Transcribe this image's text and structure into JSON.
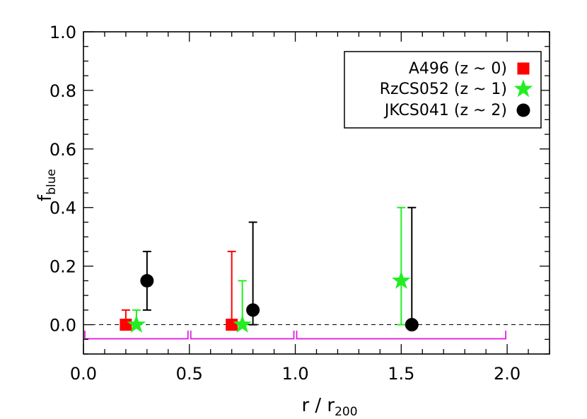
{
  "chart_data": {
    "type": "scatter",
    "title": "",
    "xlabel": "r / r",
    "xlabel_sub": "200",
    "ylabel": "f",
    "ylabel_sub": "blue",
    "xlim": [
      0.0,
      2.2
    ],
    "ylim": [
      -0.1,
      1.0
    ],
    "x_ticks": [
      0.0,
      0.5,
      1.0,
      1.5,
      2.0
    ],
    "x_tick_labels": [
      "0.0",
      "0.5",
      "1.0",
      "1.5",
      "2.0"
    ],
    "y_ticks": [
      0.0,
      0.2,
      0.4,
      0.6,
      0.8,
      1.0
    ],
    "y_tick_labels": [
      "0.0",
      "0.2",
      "0.4",
      "0.6",
      "0.8",
      "1.0"
    ],
    "grid": false,
    "legend_position": "top-right",
    "reference_line_y": 0.0,
    "radial_bins": [
      [
        0.0,
        0.5
      ],
      [
        0.5,
        1.0
      ],
      [
        1.0,
        2.0
      ]
    ],
    "bin_color": "#e020e0",
    "series": [
      {
        "name": "A496 (z ~ 0)",
        "color": "#ff0000",
        "marker": "square",
        "points": [
          {
            "x": 0.2,
            "y": 0.0,
            "y_low": 0.0,
            "y_high": 0.05
          },
          {
            "x": 0.7,
            "y": 0.0,
            "y_low": 0.0,
            "y_high": 0.25
          }
        ]
      },
      {
        "name": "RzCS052 (z ~ 1)",
        "color": "#22ee22",
        "marker": "star",
        "points": [
          {
            "x": 0.25,
            "y": 0.0,
            "y_low": 0.0,
            "y_high": 0.05
          },
          {
            "x": 0.75,
            "y": 0.0,
            "y_low": 0.0,
            "y_high": 0.15
          },
          {
            "x": 1.5,
            "y": 0.15,
            "y_low": 0.0,
            "y_high": 0.4
          }
        ]
      },
      {
        "name": "JKCS041 (z ~ 2)",
        "color": "#000000",
        "marker": "circle",
        "points": [
          {
            "x": 0.3,
            "y": 0.15,
            "y_low": 0.05,
            "y_high": 0.25
          },
          {
            "x": 0.8,
            "y": 0.05,
            "y_low": 0.0,
            "y_high": 0.35
          },
          {
            "x": 1.55,
            "y": 0.0,
            "y_low": 0.0,
            "y_high": 0.4
          }
        ]
      }
    ]
  }
}
